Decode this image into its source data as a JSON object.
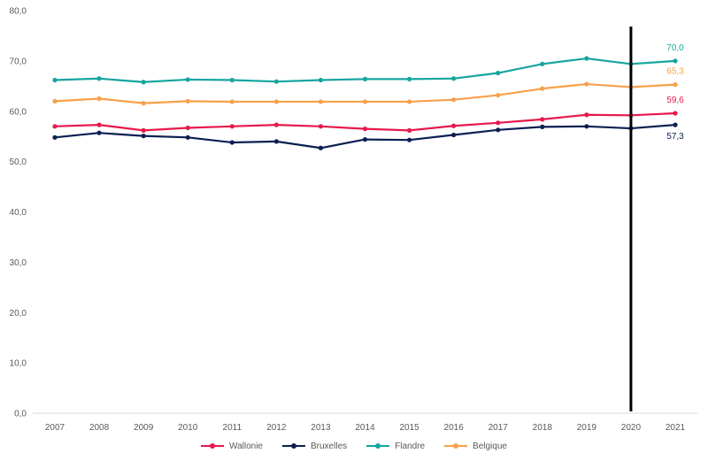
{
  "chart_data": {
    "type": "line",
    "title": "",
    "xlabel": "",
    "ylabel": "",
    "categories": [
      "2007",
      "2008",
      "2009",
      "2010",
      "2011",
      "2012",
      "2013",
      "2014",
      "2015",
      "2016",
      "2017",
      "2018",
      "2019",
      "2020",
      "2021"
    ],
    "ylim": [
      0,
      80
    ],
    "yticks": [
      "0,0",
      "10,0",
      "20,0",
      "30,0",
      "40,0",
      "50,0",
      "60,0",
      "70,0",
      "80,0"
    ],
    "grid": false,
    "legend_position": "bottom",
    "vertical_marker_category": "2020",
    "series": [
      {
        "name": "Wallonie",
        "color": "#e6194b",
        "values": [
          57.0,
          57.3,
          56.2,
          56.7,
          57.0,
          57.3,
          57.0,
          56.5,
          56.2,
          57.1,
          57.7,
          58.4,
          59.3,
          59.2,
          59.6
        ],
        "end_label": "59,6"
      },
      {
        "name": "Bruxelles",
        "color": "#0b1f52",
        "values": [
          54.8,
          55.7,
          55.1,
          54.8,
          53.8,
          54.0,
          52.7,
          54.4,
          54.3,
          55.3,
          56.3,
          56.9,
          57.0,
          56.6,
          57.3
        ],
        "end_label": "57,3"
      },
      {
        "name": "Flandre",
        "color": "#16a59f",
        "values": [
          66.2,
          66.5,
          65.8,
          66.3,
          66.2,
          65.9,
          66.2,
          66.4,
          66.4,
          66.5,
          67.6,
          69.4,
          70.5,
          69.4,
          70.0
        ],
        "end_label": "70,0"
      },
      {
        "name": "Belgique",
        "color": "#f7a04a",
        "values": [
          62.0,
          62.5,
          61.6,
          62.0,
          61.9,
          61.9,
          61.9,
          61.9,
          61.9,
          62.3,
          63.2,
          64.5,
          65.4,
          64.8,
          65.3
        ],
        "end_label": "65,3"
      }
    ]
  }
}
